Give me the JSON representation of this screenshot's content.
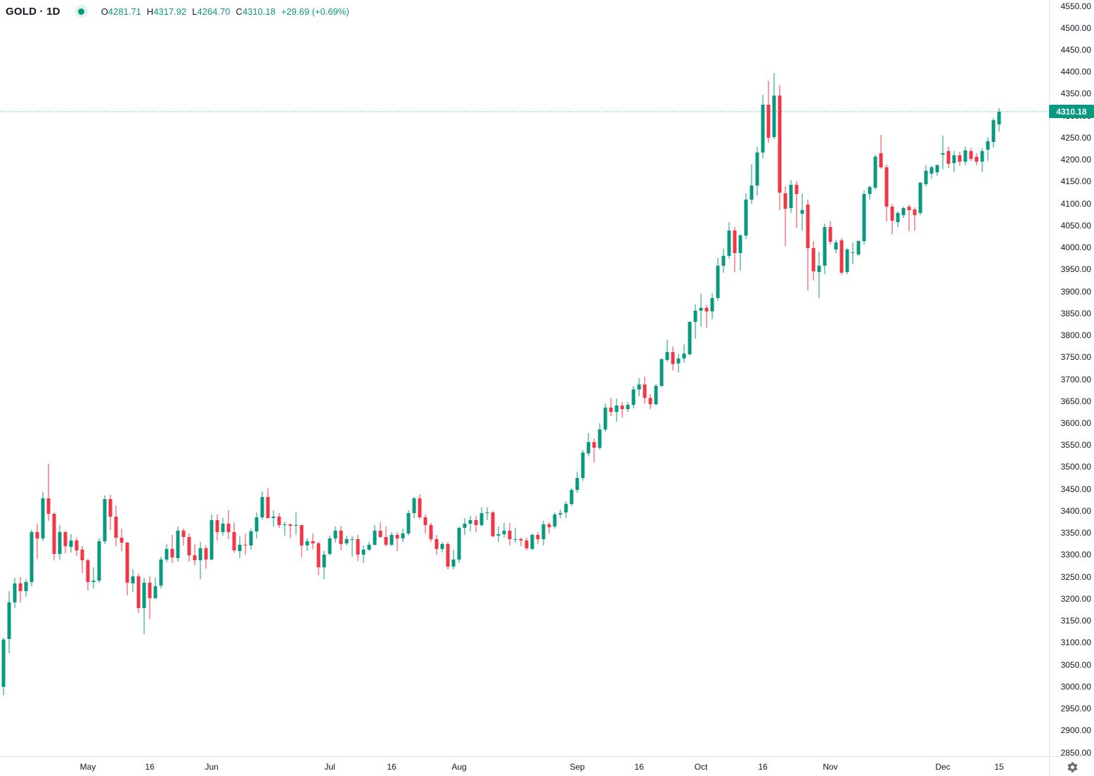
{
  "header": {
    "symbol": "GOLD",
    "separator": "·",
    "interval": "1D",
    "title": "GOLD · 1D",
    "ohlc": {
      "open_label": "O",
      "open": "4281.71",
      "high_label": "H",
      "high": "4317.92",
      "low_label": "L",
      "low": "4264.70",
      "close_label": "C",
      "close": "4310.18",
      "change": "+29.69",
      "change_pct": "(+0.69%)"
    }
  },
  "colors": {
    "up": "#089981",
    "down": "#f23645",
    "text": "#131722",
    "axis_border": "#e0e3eb",
    "last_price_bg": "#089981",
    "last_price_text": "#ffffff",
    "icon": "#6a6d78"
  },
  "price_axis": {
    "min": 2850,
    "max": 4550,
    "step": 50,
    "decimals": 2,
    "last_price": "4310.18",
    "last_price_value": 4310.18
  },
  "time_axis": {
    "ticks": [
      {
        "label": "May",
        "index": 15,
        "major": true
      },
      {
        "label": "16",
        "index": 26,
        "major": false
      },
      {
        "label": "Jun",
        "index": 37,
        "major": true
      },
      {
        "label": "Jul",
        "index": 58,
        "major": true
      },
      {
        "label": "16",
        "index": 69,
        "major": false
      },
      {
        "label": "Aug",
        "index": 81,
        "major": true
      },
      {
        "label": "Sep",
        "index": 102,
        "major": true
      },
      {
        "label": "16",
        "index": 113,
        "major": false
      },
      {
        "label": "Oct",
        "index": 124,
        "major": true
      },
      {
        "label": "16",
        "index": 135,
        "major": false
      },
      {
        "label": "Nov",
        "index": 147,
        "major": true
      },
      {
        "label": "Dec",
        "index": 167,
        "major": true
      },
      {
        "label": "15",
        "index": 177,
        "major": false
      }
    ]
  },
  "chart_data": {
    "type": "candlestick",
    "title": "GOLD · 1D",
    "legend_position": "top-left",
    "grid": false,
    "ylim": [
      2850,
      4550
    ],
    "y_tick_step": 50,
    "up_color": "#089981",
    "down_color": "#f23645",
    "last_close": 4310.18,
    "candles_ohlc": [
      [
        3000,
        3112,
        2982,
        3108
      ],
      [
        3108,
        3218,
        3078,
        3192
      ],
      [
        3192,
        3248,
        3180,
        3236
      ],
      [
        3236,
        3250,
        3193,
        3218
      ],
      [
        3218,
        3246,
        3205,
        3239
      ],
      [
        3239,
        3358,
        3229,
        3352
      ],
      [
        3352,
        3372,
        3292,
        3338
      ],
      [
        3338,
        3444,
        3332,
        3430
      ],
      [
        3430,
        3508,
        3378,
        3394
      ],
      [
        3394,
        3398,
        3288,
        3302
      ],
      [
        3302,
        3368,
        3290,
        3352
      ],
      [
        3352,
        3356,
        3305,
        3320
      ],
      [
        3320,
        3348,
        3306,
        3334
      ],
      [
        3334,
        3340,
        3298,
        3312
      ],
      [
        3312,
        3320,
        3260,
        3288
      ],
      [
        3288,
        3292,
        3220,
        3238
      ],
      [
        3238,
        3272,
        3224,
        3242
      ],
      [
        3242,
        3338,
        3238,
        3332
      ],
      [
        3332,
        3436,
        3326,
        3428
      ],
      [
        3428,
        3438,
        3358,
        3388
      ],
      [
        3388,
        3414,
        3320,
        3340
      ],
      [
        3340,
        3360,
        3310,
        3328
      ],
      [
        3328,
        3330,
        3208,
        3236
      ],
      [
        3236,
        3268,
        3216,
        3252
      ],
      [
        3252,
        3258,
        3168,
        3180
      ],
      [
        3180,
        3248,
        3120,
        3238
      ],
      [
        3238,
        3252,
        3154,
        3202
      ],
      [
        3202,
        3248,
        3200,
        3230
      ],
      [
        3230,
        3296,
        3224,
        3290
      ],
      [
        3290,
        3326,
        3284,
        3314
      ],
      [
        3314,
        3346,
        3282,
        3294
      ],
      [
        3294,
        3366,
        3286,
        3356
      ],
      [
        3356,
        3360,
        3322,
        3342
      ],
      [
        3342,
        3350,
        3285,
        3300
      ],
      [
        3300,
        3325,
        3277,
        3288
      ],
      [
        3288,
        3330,
        3245,
        3316
      ],
      [
        3316,
        3322,
        3270,
        3290
      ],
      [
        3290,
        3392,
        3288,
        3380
      ],
      [
        3380,
        3392,
        3333,
        3352
      ],
      [
        3352,
        3384,
        3345,
        3372
      ],
      [
        3372,
        3403,
        3337,
        3352
      ],
      [
        3352,
        3375,
        3307,
        3310
      ],
      [
        3310,
        3343,
        3293,
        3324
      ],
      [
        3324,
        3350,
        3301,
        3322
      ],
      [
        3322,
        3360,
        3312,
        3354
      ],
      [
        3354,
        3398,
        3338,
        3386
      ],
      [
        3386,
        3446,
        3382,
        3432
      ],
      [
        3432,
        3452,
        3383,
        3384
      ],
      [
        3384,
        3403,
        3366,
        3388
      ],
      [
        3388,
        3396,
        3363,
        3368
      ],
      [
        3368,
        3377,
        3344,
        3370
      ],
      [
        3370,
        3372,
        3340,
        3367
      ],
      [
        3367,
        3398,
        3347,
        3368
      ],
      [
        3368,
        3369,
        3295,
        3322
      ],
      [
        3322,
        3339,
        3310,
        3332
      ],
      [
        3332,
        3350,
        3315,
        3327
      ],
      [
        3327,
        3330,
        3255,
        3273
      ],
      [
        3273,
        3310,
        3246,
        3302
      ],
      [
        3302,
        3345,
        3300,
        3338
      ],
      [
        3338,
        3365,
        3328,
        3356
      ],
      [
        3356,
        3365,
        3311,
        3326
      ],
      [
        3326,
        3345,
        3323,
        3336
      ],
      [
        3336,
        3343,
        3296,
        3336
      ],
      [
        3336,
        3346,
        3287,
        3300
      ],
      [
        3300,
        3322,
        3283,
        3312
      ],
      [
        3312,
        3331,
        3309,
        3324
      ],
      [
        3324,
        3369,
        3322,
        3356
      ],
      [
        3356,
        3375,
        3340,
        3342
      ],
      [
        3342,
        3366,
        3320,
        3324
      ],
      [
        3324,
        3352,
        3320,
        3346
      ],
      [
        3346,
        3352,
        3309,
        3338
      ],
      [
        3338,
        3360,
        3330,
        3350
      ],
      [
        3350,
        3402,
        3345,
        3396
      ],
      [
        3396,
        3433,
        3384,
        3430
      ],
      [
        3430,
        3439,
        3381,
        3386
      ],
      [
        3386,
        3393,
        3350,
        3368
      ],
      [
        3368,
        3374,
        3331,
        3336
      ],
      [
        3336,
        3347,
        3301,
        3314
      ],
      [
        3314,
        3330,
        3307,
        3326
      ],
      [
        3326,
        3330,
        3268,
        3274
      ],
      [
        3274,
        3312,
        3268,
        3290
      ],
      [
        3290,
        3366,
        3283,
        3362
      ],
      [
        3362,
        3385,
        3346,
        3372
      ],
      [
        3372,
        3389,
        3355,
        3380
      ],
      [
        3380,
        3389,
        3353,
        3368
      ],
      [
        3368,
        3409,
        3365,
        3396
      ],
      [
        3396,
        3408,
        3380,
        3398
      ],
      [
        3398,
        3400,
        3341,
        3344
      ],
      [
        3344,
        3365,
        3331,
        3348
      ],
      [
        3348,
        3374,
        3340,
        3356
      ],
      [
        3356,
        3374,
        3323,
        3336
      ],
      [
        3336,
        3362,
        3329,
        3337
      ],
      [
        3337,
        3340,
        3320,
        3333
      ],
      [
        3333,
        3340,
        3311,
        3315
      ],
      [
        3315,
        3350,
        3312,
        3347
      ],
      [
        3347,
        3352,
        3325,
        3338
      ],
      [
        3338,
        3378,
        3322,
        3371
      ],
      [
        3371,
        3375,
        3350,
        3364
      ],
      [
        3364,
        3398,
        3360,
        3392
      ],
      [
        3392,
        3404,
        3384,
        3396
      ],
      [
        3396,
        3423,
        3385,
        3416
      ],
      [
        3416,
        3453,
        3412,
        3448
      ],
      [
        3448,
        3490,
        3443,
        3476
      ],
      [
        3476,
        3540,
        3470,
        3533
      ],
      [
        3533,
        3578,
        3526,
        3558
      ],
      [
        3558,
        3565,
        3511,
        3545
      ],
      [
        3545,
        3600,
        3540,
        3587
      ],
      [
        3587,
        3646,
        3582,
        3636
      ],
      [
        3636,
        3659,
        3616,
        3626
      ],
      [
        3626,
        3657,
        3604,
        3641
      ],
      [
        3641,
        3649,
        3613,
        3633
      ],
      [
        3633,
        3649,
        3627,
        3643
      ],
      [
        3643,
        3685,
        3635,
        3678
      ],
      [
        3678,
        3703,
        3662,
        3689
      ],
      [
        3689,
        3707,
        3646,
        3659
      ],
      [
        3659,
        3667,
        3632,
        3644
      ],
      [
        3644,
        3690,
        3640,
        3685
      ],
      [
        3685,
        3748,
        3682,
        3746
      ],
      [
        3746,
        3791,
        3740,
        3763
      ],
      [
        3763,
        3775,
        3721,
        3736
      ],
      [
        3736,
        3760,
        3716,
        3748
      ],
      [
        3748,
        3780,
        3739,
        3759
      ],
      [
        3759,
        3833,
        3754,
        3832
      ],
      [
        3832,
        3872,
        3793,
        3857
      ],
      [
        3857,
        3895,
        3820,
        3864
      ],
      [
        3864,
        3870,
        3819,
        3856
      ],
      [
        3856,
        3897,
        3837,
        3886
      ],
      [
        3886,
        3977,
        3880,
        3960
      ],
      [
        3960,
        3998,
        3944,
        3982
      ],
      [
        3982,
        4059,
        3975,
        4040
      ],
      [
        4040,
        4047,
        3945,
        3988
      ],
      [
        3988,
        4032,
        3948,
        4028
      ],
      [
        4028,
        4125,
        4020,
        4110
      ],
      [
        4110,
        4190,
        4100,
        4142
      ],
      [
        4142,
        4230,
        4120,
        4217
      ],
      [
        4217,
        4348,
        4205,
        4326
      ],
      [
        4326,
        4380,
        4240,
        4251
      ],
      [
        4251,
        4398,
        4248,
        4346
      ],
      [
        4346,
        4370,
        4085,
        4125
      ],
      [
        4125,
        4140,
        4004,
        4090
      ],
      [
        4090,
        4155,
        4079,
        4143
      ],
      [
        4143,
        4152,
        4046,
        4122
      ],
      [
        4078,
        4125,
        4040,
        4086
      ],
      [
        4098,
        4110,
        3903,
        3999
      ],
      [
        3999,
        4015,
        3925,
        3946
      ],
      [
        3946,
        3992,
        3886,
        3960
      ],
      [
        3960,
        4056,
        3940,
        4048
      ],
      [
        4048,
        4060,
        4008,
        4015
      ],
      [
        3996,
        4018,
        3988,
        4012
      ],
      [
        4017,
        4022,
        3938,
        3943
      ],
      [
        3944,
        3999,
        3940,
        3996
      ],
      [
        3988,
        4012,
        3962,
        3990
      ],
      [
        3985,
        4018,
        3982,
        4015
      ],
      [
        4015,
        4130,
        4008,
        4122
      ],
      [
        4122,
        4142,
        4110,
        4138
      ],
      [
        4138,
        4212,
        4132,
        4208
      ],
      [
        4215,
        4257,
        4180,
        4183
      ],
      [
        4184,
        4190,
        4060,
        4094
      ],
      [
        4094,
        4100,
        4032,
        4062
      ],
      [
        4059,
        4082,
        4048,
        4080
      ],
      [
        4075,
        4093,
        4068,
        4091
      ],
      [
        4094,
        4098,
        4038,
        4086
      ],
      [
        4088,
        4092,
        4039,
        4075
      ],
      [
        4079,
        4150,
        4075,
        4148
      ],
      [
        4145,
        4188,
        4140,
        4175
      ],
      [
        4169,
        4186,
        4158,
        4183
      ],
      [
        4172,
        4190,
        4165,
        4188
      ],
      [
        4212,
        4256,
        4178,
        4216
      ],
      [
        4221,
        4230,
        4182,
        4192
      ],
      [
        4192,
        4220,
        4172,
        4210
      ],
      [
        4210,
        4218,
        4186,
        4196
      ],
      [
        4196,
        4230,
        4188,
        4222
      ],
      [
        4220,
        4226,
        4198,
        4203
      ],
      [
        4208,
        4216,
        4188,
        4196
      ],
      [
        4196,
        4226,
        4174,
        4220
      ],
      [
        4224,
        4252,
        4198,
        4243
      ],
      [
        4240,
        4296,
        4228,
        4290
      ],
      [
        4281.71,
        4317.92,
        4264.7,
        4310.18
      ]
    ]
  }
}
